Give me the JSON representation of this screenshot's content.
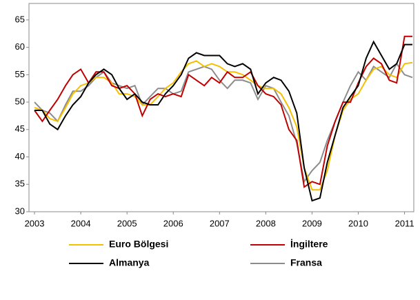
{
  "chart_data": {
    "type": "line",
    "x": [
      2003,
      2003.17,
      2003.33,
      2003.5,
      2003.67,
      2003.83,
      2004,
      2004.17,
      2004.33,
      2004.5,
      2004.67,
      2004.83,
      2005,
      2005.17,
      2005.33,
      2005.5,
      2005.67,
      2005.83,
      2006,
      2006.17,
      2006.33,
      2006.5,
      2006.67,
      2006.83,
      2007,
      2007.17,
      2007.33,
      2007.5,
      2007.67,
      2007.83,
      2008,
      2008.17,
      2008.33,
      2008.5,
      2008.67,
      2008.83,
      2009,
      2009.17,
      2009.33,
      2009.5,
      2009.67,
      2009.83,
      2010,
      2010.17,
      2010.33,
      2010.5,
      2010.67,
      2010.83,
      2011,
      2011.17
    ],
    "series": [
      {
        "name": "Euro Bölgesi",
        "color": "#f5c000",
        "values": [
          49,
          48.5,
          47,
          46.5,
          49,
          51.5,
          53,
          53.5,
          54.5,
          54.5,
          53.5,
          51.5,
          51.5,
          51,
          49.5,
          49.5,
          51,
          52.5,
          53.5,
          55.5,
          57,
          57.5,
          56.5,
          57,
          56.5,
          55.5,
          55.5,
          55,
          54,
          53,
          52.5,
          52.5,
          51.5,
          49,
          45.5,
          38,
          34,
          34,
          37.5,
          44,
          48.5,
          50.5,
          51.5,
          54,
          56,
          56.5,
          55,
          54.5,
          57,
          57.2
        ]
      },
      {
        "name": "İngiltere",
        "color": "#c00000",
        "values": [
          48.5,
          46.5,
          48.5,
          50.5,
          53,
          55,
          56,
          53.5,
          55.5,
          55.5,
          53,
          52.5,
          53,
          51.5,
          47.5,
          50.5,
          51.5,
          51,
          51.5,
          51,
          55,
          54,
          53,
          54.5,
          53.5,
          55.5,
          54.5,
          54.5,
          55.5,
          53,
          51.5,
          51,
          49.5,
          45,
          43,
          34.5,
          35.5,
          35,
          42,
          46.5,
          50,
          50,
          53.5,
          56.5,
          58,
          57,
          54,
          53.5,
          62,
          62
        ]
      },
      {
        "name": "Almanya",
        "color": "#000000",
        "values": [
          48.5,
          48.5,
          46,
          45,
          47.5,
          49.5,
          51,
          53.5,
          55,
          56,
          55,
          52.5,
          50.5,
          51.5,
          50,
          49.5,
          49.5,
          51.5,
          53,
          55,
          58,
          59,
          58.5,
          58.5,
          58.5,
          57,
          56.5,
          57,
          56,
          51.5,
          53.5,
          54.5,
          54,
          52,
          48,
          38,
          32,
          32.5,
          39,
          44,
          49,
          51,
          53,
          58,
          61,
          58.5,
          56,
          57,
          60.5,
          60.5
        ]
      },
      {
        "name": "Fransa",
        "color": "#8c8c8c",
        "values": [
          50,
          48.5,
          48,
          46.5,
          49.5,
          52,
          52,
          53,
          54.5,
          55.5,
          53.5,
          53,
          52.5,
          53,
          49.5,
          51,
          52.5,
          52.5,
          51.5,
          52,
          55.5,
          56,
          56.5,
          56,
          54,
          52.5,
          54,
          54,
          53.5,
          50.5,
          53,
          52.5,
          50,
          47.5,
          42.5,
          35.5,
          37.5,
          39,
          43,
          46.5,
          50,
          53,
          55.5,
          54,
          56.5,
          55.5,
          54.5,
          57,
          55,
          54.5
        ]
      }
    ],
    "xlim": [
      2002.88,
      2011.2
    ],
    "xticks": [
      2003,
      2004,
      2005,
      2006,
      2007,
      2008,
      2009,
      2010,
      2011
    ],
    "ylim": [
      30,
      68
    ],
    "yticks": [
      30,
      35,
      40,
      45,
      50,
      55,
      60,
      65
    ],
    "grid": false
  }
}
